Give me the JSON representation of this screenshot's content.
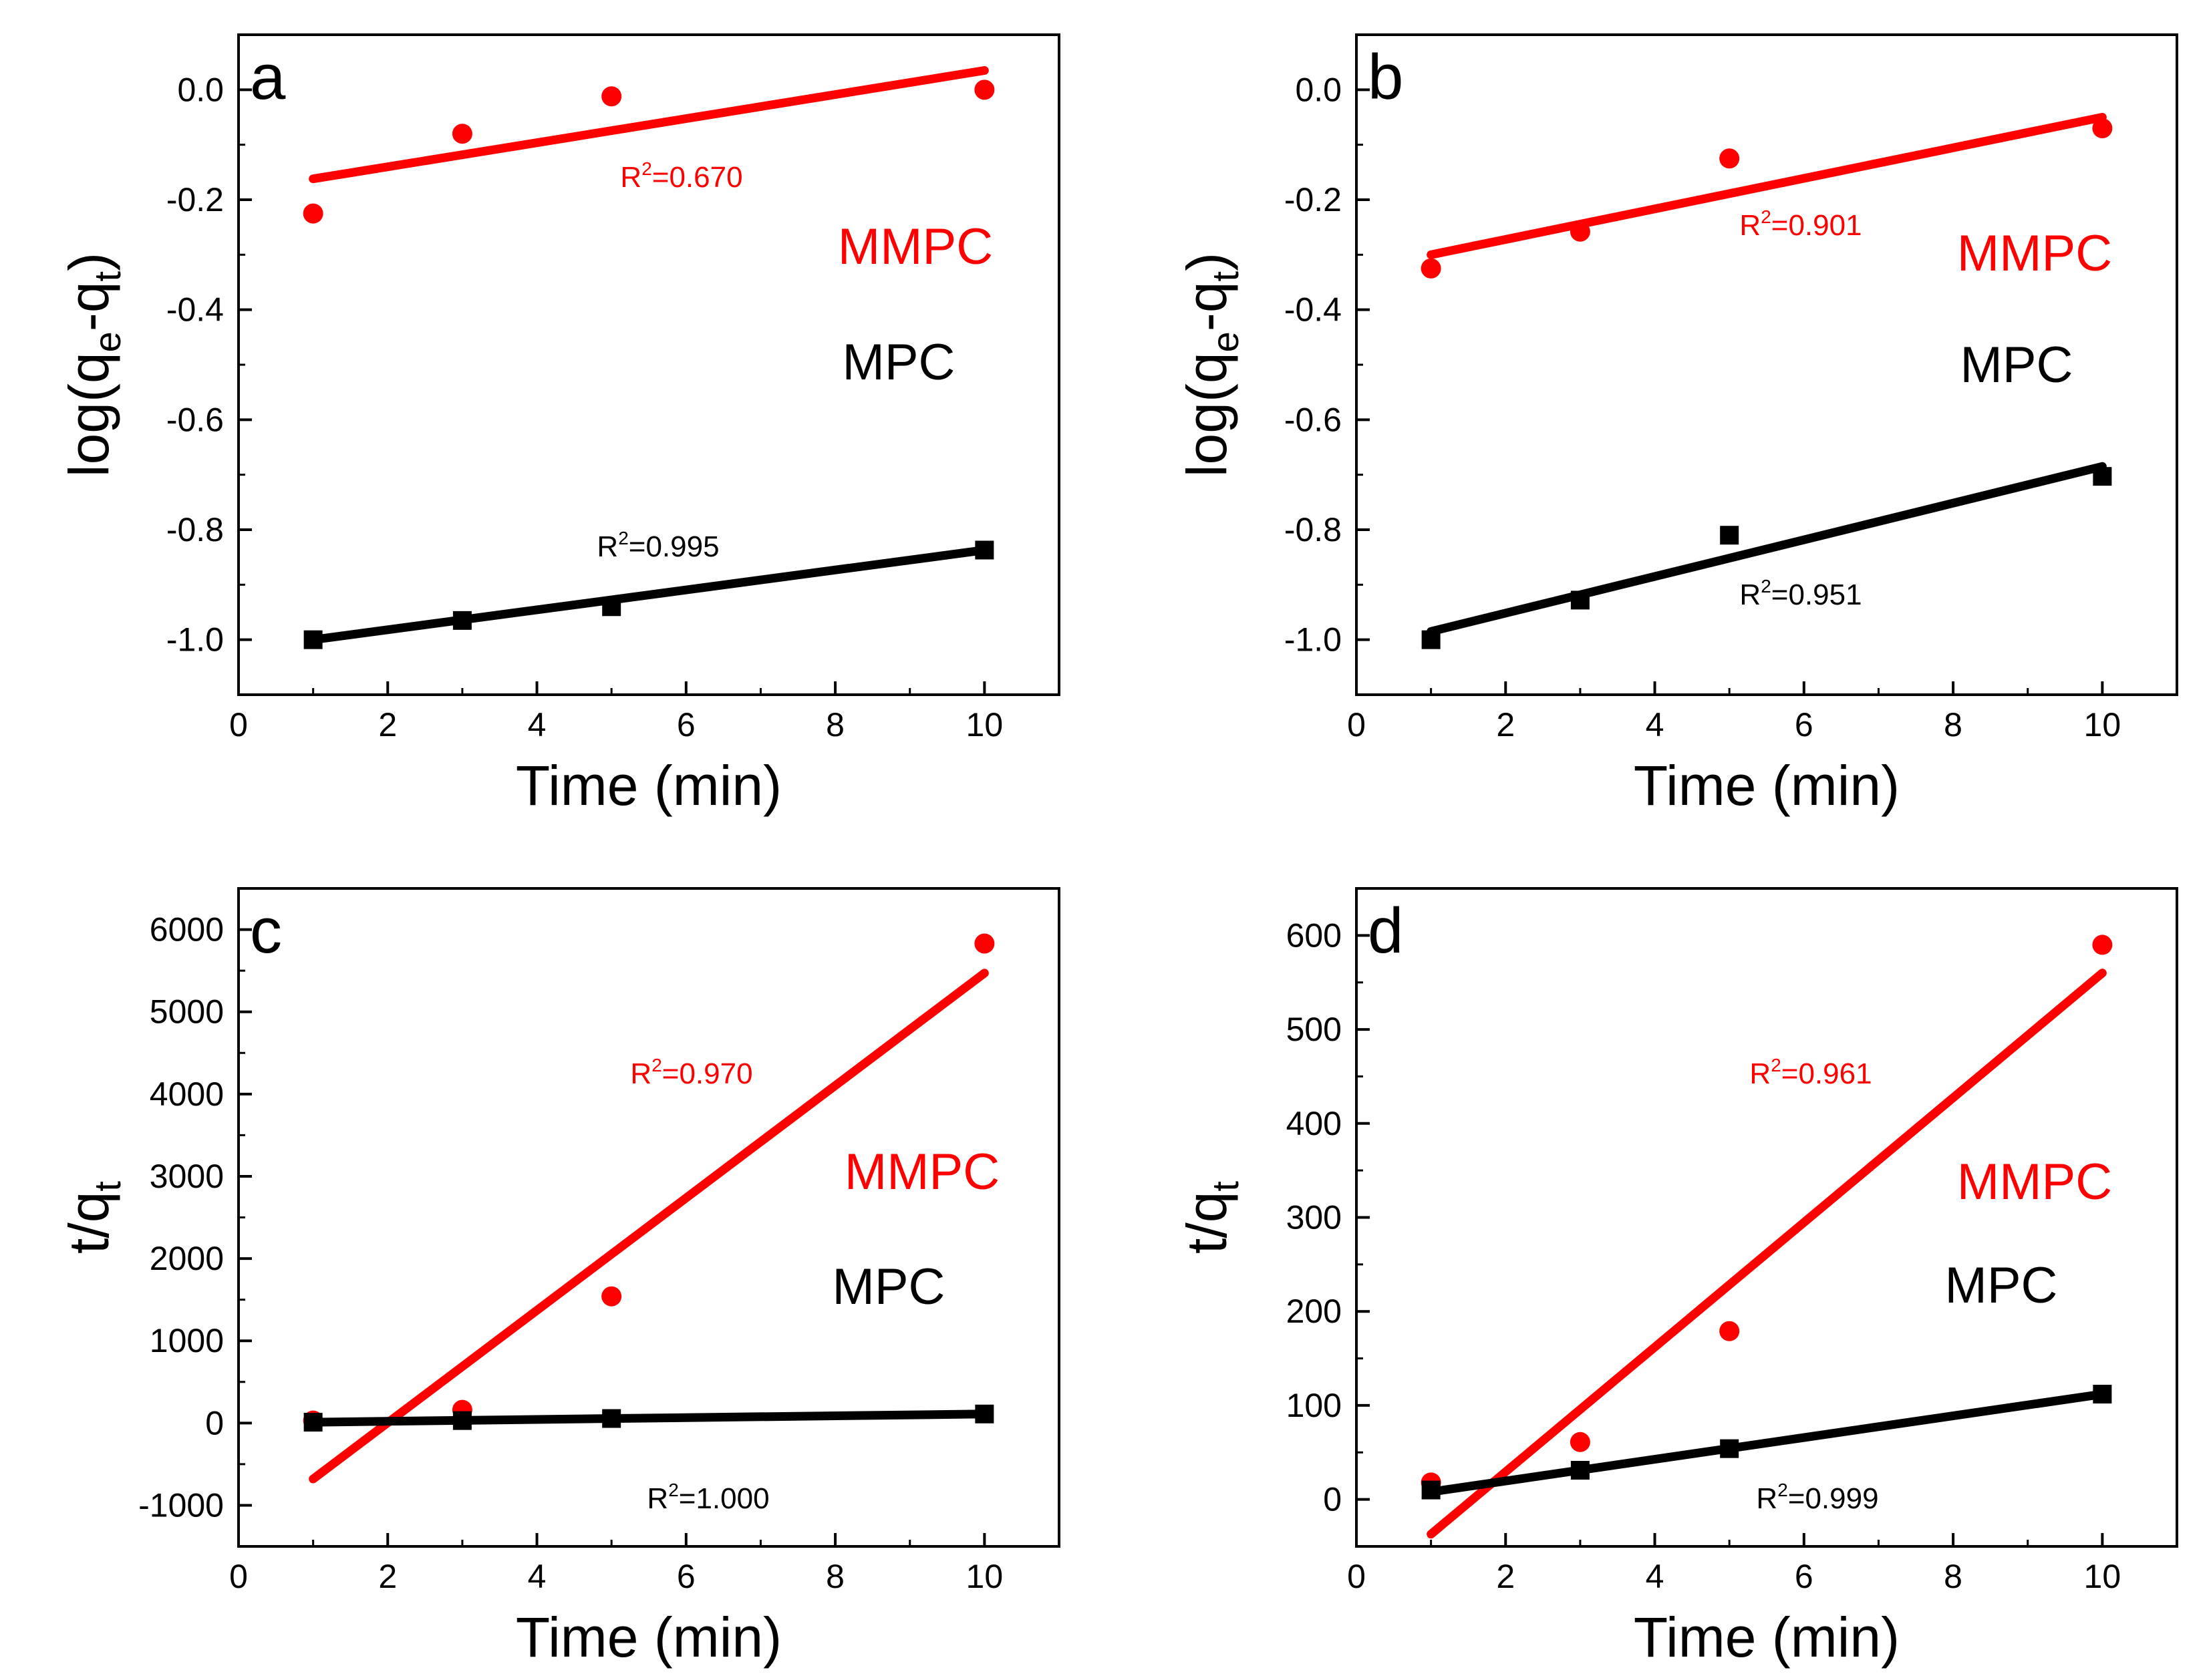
{
  "chart_data": [
    {
      "panel_label": "a",
      "type": "scatter",
      "xlabel": "Time (min)",
      "ylabel_main": "log(q",
      "ylabel_sub1": "e",
      "ylabel_mid": "-q",
      "ylabel_sub2": "t",
      "ylabel_end": ")",
      "xlim": [
        0,
        11
      ],
      "ylim": [
        -1.1,
        0.1
      ],
      "x_ticks": [
        0,
        2,
        4,
        6,
        8,
        10
      ],
      "x_tick_labels": [
        "0",
        "2",
        "4",
        "6",
        "8",
        "10"
      ],
      "y_ticks": [
        0.0,
        -0.2,
        -0.4,
        -0.6,
        -0.8,
        -1.0
      ],
      "y_tick_labels": [
        "0.0",
        "-0.2",
        "-0.4",
        "-0.6",
        "-0.8",
        "-1.0"
      ],
      "minor_y": 0.1,
      "minor_x": 1,
      "legend": {
        "mmpc": "MMPC",
        "mpc": "MPC"
      },
      "series": [
        {
          "name": "MMPC",
          "color": "#ff0000",
          "marker": "circle",
          "x": [
            1,
            3,
            5,
            10
          ],
          "y": [
            -0.225,
            -0.08,
            -0.012,
            0.0
          ],
          "fit": {
            "x1": 1,
            "y1": -0.162,
            "x2": 10,
            "y2": 0.035
          },
          "r2_prefix": "R",
          "r2_sup": "2",
          "r2_value": "=0.670"
        },
        {
          "name": "MPC",
          "color": "#000000",
          "marker": "square",
          "x": [
            1,
            3,
            5,
            10
          ],
          "y": [
            -1.0,
            -0.965,
            -0.94,
            -0.837
          ],
          "fit": {
            "x1": 1,
            "y1": -1.0,
            "x2": 10,
            "y2": -0.837
          },
          "r2_prefix": "R",
          "r2_sup": "2",
          "r2_value": "=0.995"
        }
      ]
    },
    {
      "panel_label": "b",
      "type": "scatter",
      "xlabel": "Time (min)",
      "ylabel_main": "log(q",
      "ylabel_sub1": "e",
      "ylabel_mid": "-q",
      "ylabel_sub2": "t",
      "ylabel_end": ")",
      "xlim": [
        0,
        11
      ],
      "ylim": [
        -1.1,
        0.1
      ],
      "x_ticks": [
        0,
        2,
        4,
        6,
        8,
        10
      ],
      "x_tick_labels": [
        "0",
        "2",
        "4",
        "6",
        "8",
        "10"
      ],
      "y_ticks": [
        0.0,
        -0.2,
        -0.4,
        -0.6,
        -0.8,
        -1.0
      ],
      "y_tick_labels": [
        "0.0",
        "-0.2",
        "-0.4",
        "-0.6",
        "-0.8",
        "-1.0"
      ],
      "minor_y": 0.1,
      "minor_x": 1,
      "legend": {
        "mmpc": "MMPC",
        "mpc": "MPC"
      },
      "series": [
        {
          "name": "MMPC",
          "color": "#ff0000",
          "marker": "circle",
          "x": [
            1,
            3,
            5,
            10
          ],
          "y": [
            -0.325,
            -0.258,
            -0.125,
            -0.07
          ],
          "fit": {
            "x1": 1,
            "y1": -0.3,
            "x2": 10,
            "y2": -0.05
          },
          "r2_prefix": "R",
          "r2_sup": "2",
          "r2_value": "=0.901"
        },
        {
          "name": "MPC",
          "color": "#000000",
          "marker": "square",
          "x": [
            1,
            3,
            5,
            10
          ],
          "y": [
            -1.0,
            -0.928,
            -0.81,
            -0.703
          ],
          "fit": {
            "x1": 1,
            "y1": -0.985,
            "x2": 10,
            "y2": -0.685
          },
          "r2_prefix": "R",
          "r2_sup": "2",
          "r2_value": "=0.951"
        }
      ]
    },
    {
      "panel_label": "c",
      "type": "scatter",
      "xlabel": "Time (min)",
      "ylabel_main": "t/q",
      "ylabel_sub1": "t",
      "ylabel_mid": "",
      "ylabel_sub2": "",
      "ylabel_end": "",
      "xlim": [
        0,
        11
      ],
      "ylim": [
        -1500,
        6500
      ],
      "x_ticks": [
        0,
        2,
        4,
        6,
        8,
        10
      ],
      "x_tick_labels": [
        "0",
        "2",
        "4",
        "6",
        "8",
        "10"
      ],
      "y_ticks": [
        6000,
        5000,
        4000,
        3000,
        2000,
        1000,
        0,
        -1000
      ],
      "y_tick_labels": [
        "6000",
        "5000",
        "4000",
        "3000",
        "2000",
        "1000",
        "0",
        "-1000"
      ],
      "minor_y": 500,
      "minor_x": 1,
      "legend": {
        "mmpc": "MMPC",
        "mpc": "MPC"
      },
      "series": [
        {
          "name": "MMPC",
          "color": "#ff0000",
          "marker": "circle",
          "x": [
            1,
            3,
            5,
            10
          ],
          "y": [
            30,
            160,
            1540,
            5830
          ],
          "fit": {
            "x1": 1,
            "y1": -680,
            "x2": 10,
            "y2": 5470
          },
          "r2_prefix": "R",
          "r2_sup": "2",
          "r2_value": "=0.970"
        },
        {
          "name": "MPC",
          "color": "#000000",
          "marker": "square",
          "x": [
            1,
            3,
            5,
            10
          ],
          "y": [
            10,
            30,
            55,
            110
          ],
          "fit": {
            "x1": 1,
            "y1": 10,
            "x2": 10,
            "y2": 110
          },
          "r2_prefix": "R",
          "r2_sup": "2",
          "r2_value": "=1.000"
        }
      ]
    },
    {
      "panel_label": "d",
      "type": "scatter",
      "xlabel": "Time (min)",
      "ylabel_main": "t/q",
      "ylabel_sub1": "t",
      "ylabel_mid": "",
      "ylabel_sub2": "",
      "ylabel_end": "",
      "xlim": [
        0,
        11
      ],
      "ylim": [
        -50,
        650
      ],
      "x_ticks": [
        0,
        2,
        4,
        6,
        8,
        10
      ],
      "x_tick_labels": [
        "0",
        "2",
        "4",
        "6",
        "8",
        "10"
      ],
      "y_ticks": [
        600,
        500,
        400,
        300,
        200,
        100,
        0
      ],
      "y_tick_labels": [
        "600",
        "500",
        "400",
        "300",
        "200",
        "100",
        "0"
      ],
      "minor_y": 50,
      "minor_x": 1,
      "legend": {
        "mmpc": "MMPC",
        "mpc": "MPC"
      },
      "series": [
        {
          "name": "MMPC",
          "color": "#ff0000",
          "marker": "circle",
          "x": [
            1,
            3,
            5,
            10
          ],
          "y": [
            18,
            61,
            179,
            590
          ],
          "fit": {
            "x1": 1,
            "y1": -37,
            "x2": 10,
            "y2": 560
          },
          "r2_prefix": "R",
          "r2_sup": "2",
          "r2_value": "=0.961"
        },
        {
          "name": "MPC",
          "color": "#000000",
          "marker": "square",
          "x": [
            1,
            3,
            5,
            10
          ],
          "y": [
            10,
            31,
            54,
            112
          ],
          "fit": {
            "x1": 1,
            "y1": 8,
            "x2": 10,
            "y2": 112
          },
          "r2_prefix": "R",
          "r2_sup": "2",
          "r2_value": "=0.999"
        }
      ]
    }
  ]
}
